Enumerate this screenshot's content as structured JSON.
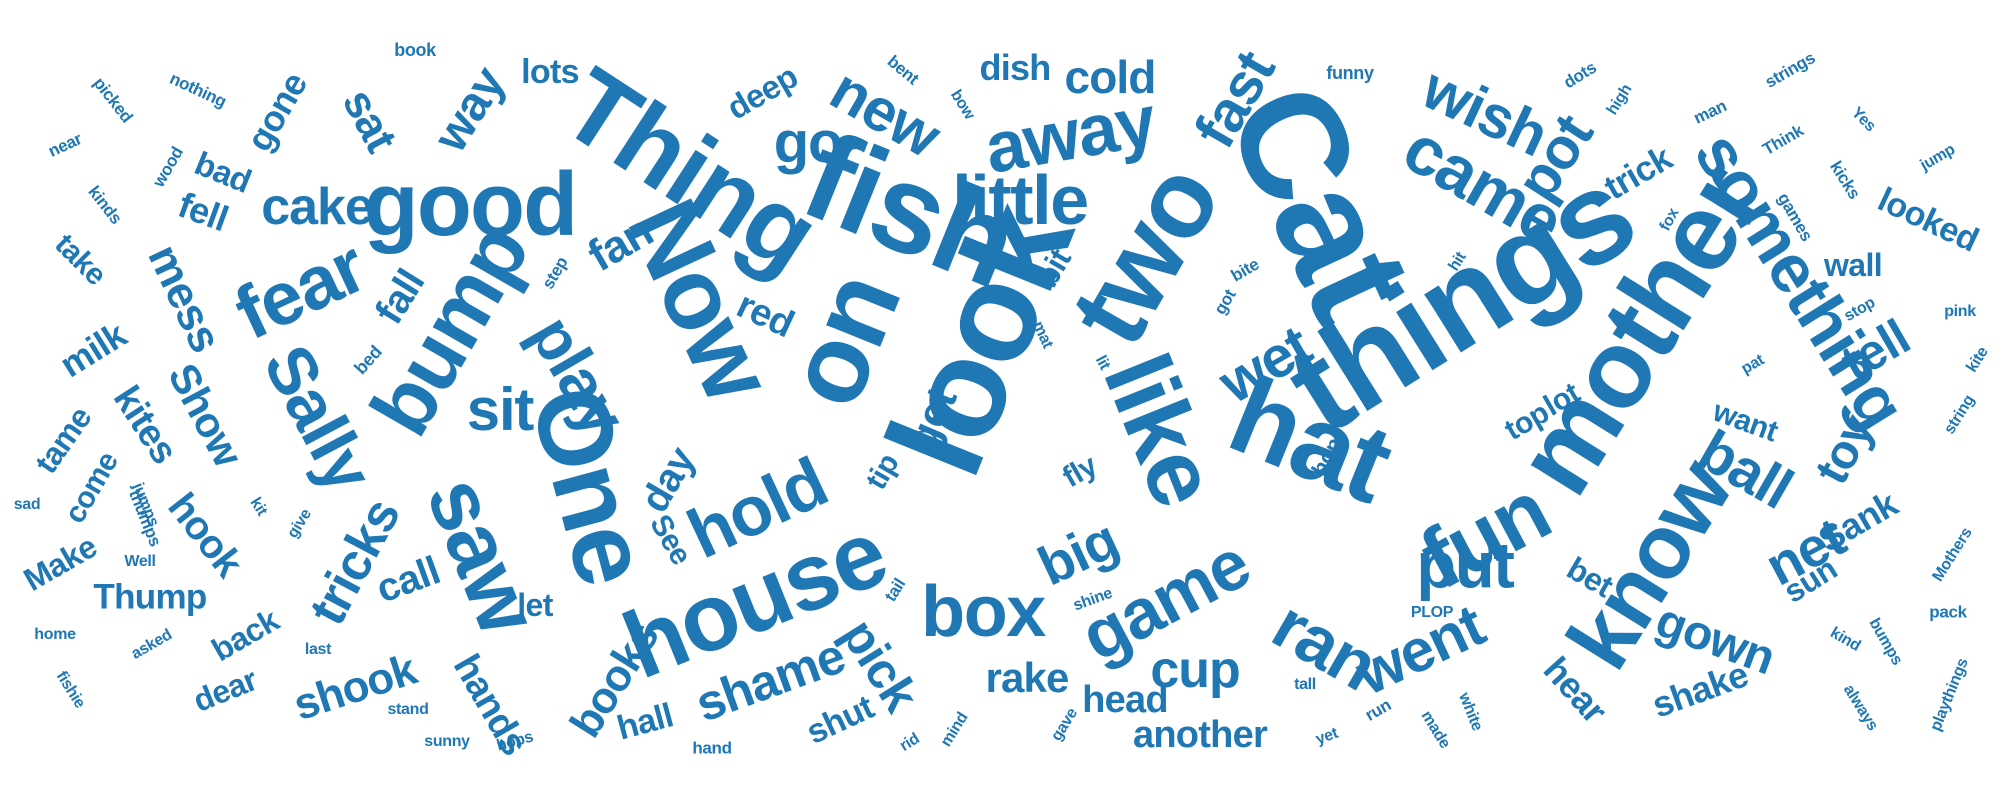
{
  "palette": {
    "word_color": "#1f77b4",
    "background": "#ffffff"
  },
  "words": [
    "Cat",
    "things",
    "look",
    "fish",
    "Thing",
    "two",
    "mother",
    "like",
    "hat",
    "on",
    "Now",
    "One",
    "house",
    "good",
    "know",
    "away",
    "something",
    "fun",
    "saw",
    "bump",
    "little",
    "fear",
    "hold",
    "came",
    "box",
    "wish",
    "fast",
    "game",
    "Sally",
    "ran",
    "cake",
    "put",
    "new",
    "ball",
    "go",
    "went",
    "pot",
    "cold",
    "wet",
    "play",
    "shame",
    "tricks",
    "tell",
    "sit",
    "net",
    "big",
    "toy",
    "gown",
    "mess",
    "fan",
    "cup",
    "dish",
    "Show",
    "wall",
    "sat",
    "books",
    "way",
    "kites",
    "shook",
    "pick",
    "looked",
    "shake",
    "hands",
    "rake",
    "another",
    "hook",
    "call",
    "day",
    "fell",
    "hear",
    "milk",
    "sun",
    "Sank",
    "get",
    "fall",
    "trick",
    "red",
    "bad",
    "gone",
    "head",
    "deep",
    "Thump",
    "lots",
    "hall",
    "tame",
    "shut",
    "dear",
    "Make",
    "back",
    "bet",
    "come",
    "top",
    "want",
    "lot",
    "take",
    "let",
    "bit",
    "fly",
    "tip",
    "See",
    "hop",
    "thumps",
    "book",
    "nothing",
    "picked",
    "near",
    "wood",
    "kinds",
    "funny",
    "bent",
    "bow",
    "dots",
    "high",
    "man",
    "strings",
    "Yes",
    "Think",
    "kicks",
    "jump",
    "games",
    "fox",
    "bite",
    "hit",
    "got",
    "step",
    "bed",
    "mat",
    "lit",
    "stop",
    "pink",
    "pat",
    "kite",
    "string",
    "Mothers",
    "bumps",
    "kind",
    "pack",
    "always",
    "playthings",
    "white",
    "made",
    "yet",
    "run",
    "tall",
    "PLOP",
    "shine",
    "gave",
    "mind",
    "rid",
    "hand",
    "hops",
    "sunny",
    "stand",
    "last",
    "asked",
    "home",
    "fishie",
    "Well",
    "jumps",
    "kit",
    "give",
    "sad",
    "tail"
  ]
}
